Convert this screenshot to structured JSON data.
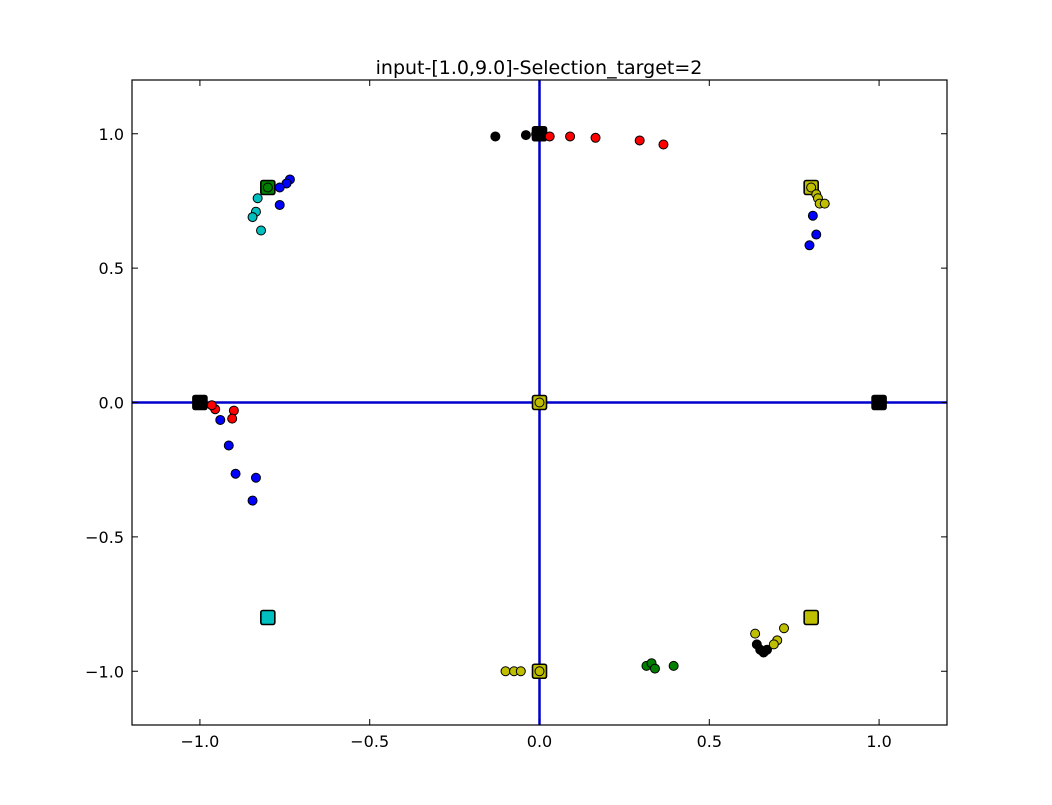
{
  "chart_data": {
    "type": "scatter",
    "title": "input-[1.0,9.0]-Selection_target=2",
    "xlabel": "",
    "ylabel": "",
    "xlim": [
      -1.2,
      1.2
    ],
    "ylim": [
      -1.2,
      1.2
    ],
    "grid": false,
    "x_ticks": [
      -1.0,
      -0.5,
      0.0,
      0.5,
      1.0
    ],
    "y_ticks": [
      -1.0,
      -0.5,
      0.0,
      0.5,
      1.0
    ],
    "x_tick_labels": [
      "−1.0",
      "−0.5",
      "0.0",
      "0.5",
      "1.0"
    ],
    "y_tick_labels": [
      "−1.0",
      "−0.5",
      "0.0",
      "0.5",
      "1.0"
    ],
    "reference_lines": {
      "x": 0.0,
      "y": 0.0,
      "color": "#0000cc"
    },
    "targets": [
      {
        "x": 0.0,
        "y": 1.0,
        "color": "#000000"
      },
      {
        "x": -1.0,
        "y": 0.0,
        "color": "#000000"
      },
      {
        "x": 1.0,
        "y": 0.0,
        "color": "#000000"
      },
      {
        "x": -0.8,
        "y": 0.8,
        "color": "#007f00"
      },
      {
        "x": 0.8,
        "y": 0.8,
        "color": "#bfbf00"
      },
      {
        "x": -0.8,
        "y": -0.8,
        "color": "#00bfbf"
      },
      {
        "x": 0.8,
        "y": -0.8,
        "color": "#bfbf00"
      },
      {
        "x": 0.0,
        "y": 0.0,
        "color": "#bfbf00"
      },
      {
        "x": 0.0,
        "y": -1.0,
        "color": "#bfbf00"
      }
    ],
    "series": [
      {
        "color": "#000000",
        "points": [
          [
            -0.13,
            0.99
          ],
          [
            -0.04,
            0.995
          ],
          [
            -0.01,
            0.998
          ],
          [
            0.64,
            -0.9
          ],
          [
            0.65,
            -0.92
          ],
          [
            0.66,
            -0.93
          ],
          [
            0.67,
            -0.92
          ]
        ]
      },
      {
        "color": "#ff0000",
        "points": [
          [
            0.03,
            0.99
          ],
          [
            0.09,
            0.99
          ],
          [
            0.165,
            0.985
          ],
          [
            0.295,
            0.975
          ],
          [
            0.365,
            0.96
          ],
          [
            -0.955,
            -0.025
          ],
          [
            -0.9,
            -0.03
          ],
          [
            -0.905,
            -0.06
          ],
          [
            -0.965,
            -0.01
          ]
        ]
      },
      {
        "color": "#0000ff",
        "points": [
          [
            -0.735,
            0.83
          ],
          [
            -0.745,
            0.815
          ],
          [
            -0.765,
            0.8
          ],
          [
            -0.765,
            0.735
          ],
          [
            0.805,
            0.695
          ],
          [
            0.815,
            0.625
          ],
          [
            0.795,
            0.585
          ],
          [
            -0.94,
            -0.065
          ],
          [
            -0.915,
            -0.16
          ],
          [
            -0.895,
            -0.265
          ],
          [
            -0.835,
            -0.28
          ],
          [
            -0.845,
            -0.365
          ]
        ]
      },
      {
        "color": "#00bfbf",
        "points": [
          [
            -0.83,
            0.76
          ],
          [
            -0.835,
            0.71
          ],
          [
            -0.845,
            0.69
          ],
          [
            -0.82,
            0.64
          ]
        ]
      },
      {
        "color": "#007f00",
        "points": [
          [
            -0.8,
            0.8
          ],
          [
            0.315,
            -0.98
          ],
          [
            0.33,
            -0.97
          ],
          [
            0.34,
            -0.99
          ],
          [
            0.395,
            -0.98
          ]
        ]
      },
      {
        "color": "#bfbf00",
        "points": [
          [
            0.8,
            0.8
          ],
          [
            0.815,
            0.775
          ],
          [
            0.82,
            0.76
          ],
          [
            0.825,
            0.74
          ],
          [
            0.84,
            0.74
          ],
          [
            0.635,
            -0.86
          ],
          [
            0.72,
            -0.84
          ],
          [
            0.7,
            -0.885
          ],
          [
            0.69,
            -0.9
          ],
          [
            -0.1,
            -1.0
          ],
          [
            -0.075,
            -1.0
          ],
          [
            -0.055,
            -1.0
          ],
          [
            0.0,
            -1.0
          ],
          [
            0.0,
            0.0
          ]
        ]
      }
    ]
  }
}
